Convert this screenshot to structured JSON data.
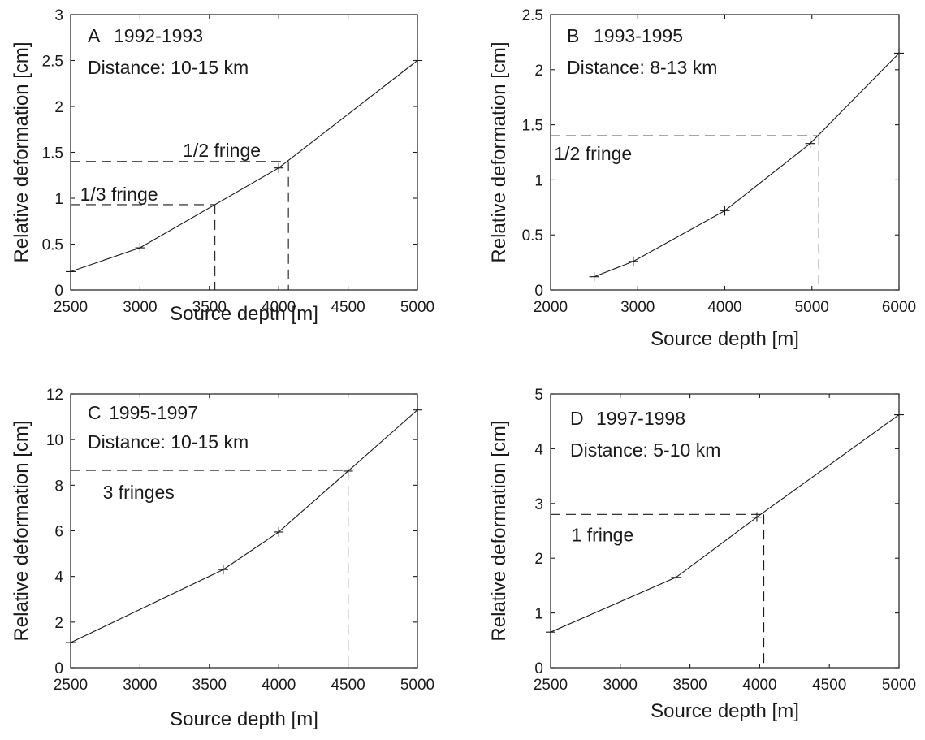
{
  "chart_data": [
    {
      "type": "line",
      "panel_label": "A",
      "title": "1992-1993",
      "subtitle": "Distance: 10-15 km",
      "xlabel": "Source depth [m]",
      "ylabel": "Relative deformation [cm]",
      "xlim": [
        2500,
        5000
      ],
      "ylim": [
        0,
        3
      ],
      "x_ticks": [
        2500,
        3000,
        3500,
        4000,
        4500,
        5000
      ],
      "y_ticks": [
        0,
        0.5,
        1,
        1.5,
        2,
        2.5,
        3
      ],
      "x_tick_labels": [
        "2500",
        "3000",
        "3500",
        "4000",
        "4500",
        "5000"
      ],
      "y_tick_labels": [
        "0",
        "0.5",
        "1",
        "1.5",
        "2",
        "2.5",
        "3"
      ],
      "series": [
        {
          "x": [
            2500,
            3000,
            4000,
            5000
          ],
          "y": [
            0.2,
            0.46,
            1.33,
            2.5
          ]
        }
      ],
      "grid": false,
      "annotations": [
        {
          "text": "1/2 fringe",
          "y": 1.4,
          "x": 4070
        },
        {
          "text": "1/3 fringe",
          "y": 0.93,
          "x": 3540
        }
      ]
    },
    {
      "type": "line",
      "panel_label": "B",
      "title": "1993-1995",
      "subtitle": "Distance: 8-13 km",
      "xlabel": "Source depth [m]",
      "ylabel": "Relative deformation [cm]",
      "xlim": [
        2000,
        6000
      ],
      "ylim": [
        0,
        2.5
      ],
      "x_ticks": [
        2000,
        3000,
        4000,
        5000,
        6000
      ],
      "y_ticks": [
        0,
        0.5,
        1,
        1.5,
        2,
        2.5
      ],
      "x_tick_labels": [
        "2000",
        "3000",
        "4000",
        "5000",
        "6000"
      ],
      "y_tick_labels": [
        "0",
        "0.5",
        "1",
        "1.5",
        "2",
        "2.5"
      ],
      "series": [
        {
          "x": [
            2500,
            2950,
            4000,
            4980,
            6000
          ],
          "y": [
            0.12,
            0.26,
            0.72,
            1.33,
            2.15
          ]
        }
      ],
      "grid": false,
      "annotations": [
        {
          "text": "1/2 fringe",
          "y": 1.4,
          "x": 5080
        }
      ]
    },
    {
      "type": "line",
      "panel_label": "C",
      "title": "1995-1997",
      "subtitle": "Distance: 10-15 km",
      "xlabel": "Source depth [m]",
      "ylabel": "Relative deformation [cm]",
      "xlim": [
        2500,
        5000
      ],
      "ylim": [
        0,
        12
      ],
      "x_ticks": [
        2500,
        3000,
        3500,
        4000,
        4500,
        5000
      ],
      "y_ticks": [
        0,
        2,
        4,
        6,
        8,
        10,
        12
      ],
      "x_tick_labels": [
        "2500",
        "3000",
        "3500",
        "4000",
        "4500",
        "5000"
      ],
      "y_tick_labels": [
        "0",
        "2",
        "4",
        "6",
        "8",
        "10",
        "12"
      ],
      "series": [
        {
          "x": [
            2500,
            3600,
            4000,
            4500,
            5000
          ],
          "y": [
            1.1,
            4.3,
            5.95,
            8.62,
            11.3
          ]
        }
      ],
      "grid": false,
      "annotations": [
        {
          "text": "3 fringes",
          "y": 8.65,
          "x": 4500
        }
      ]
    },
    {
      "type": "line",
      "panel_label": "D",
      "title": "1997-1998",
      "subtitle": "Distance: 5-10 km",
      "xlabel": "Source depth [m]",
      "ylabel": "Relative deformation [cm]",
      "xlim": [
        2500,
        5000
      ],
      "ylim": [
        0,
        5
      ],
      "x_ticks": [
        2500,
        3000,
        3500,
        4000,
        4500,
        5000
      ],
      "y_ticks": [
        0,
        1,
        2,
        3,
        4,
        5
      ],
      "x_tick_labels": [
        "2500",
        "3000",
        "3500",
        "4000",
        "4500",
        "5000"
      ],
      "y_tick_labels": [
        "0",
        "1",
        "2",
        "3",
        "4",
        "5"
      ],
      "series": [
        {
          "x": [
            2500,
            3400,
            3980,
            5000
          ],
          "y": [
            0.65,
            1.65,
            2.75,
            4.62
          ]
        }
      ],
      "grid": false,
      "annotations": [
        {
          "text": "1 fringe",
          "y": 2.8,
          "x": 4030
        }
      ]
    }
  ]
}
